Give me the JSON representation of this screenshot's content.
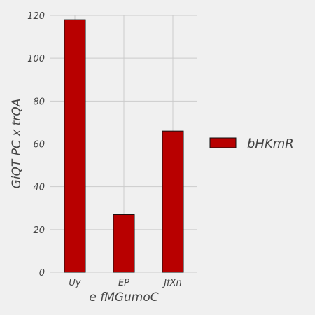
{
  "chart_data": {
    "type": "bar",
    "categories": [
      "Uy",
      "EP",
      "JfXn"
    ],
    "series": [
      {
        "name": "bHKmR",
        "values": [
          118,
          27,
          66
        ],
        "color": "#b80000"
      }
    ],
    "title": "",
    "xlabel": "e fMGumoC",
    "ylabel": "GiQT PC x trQA",
    "ylim": [
      0,
      120
    ],
    "yticks": [
      0,
      20,
      40,
      60,
      80,
      100,
      120
    ],
    "grid": true,
    "legend": "right"
  },
  "colors": {
    "background": "#f0f0f0",
    "grid": "#cbcbcb",
    "bar_edge": "#111111",
    "text": "#444444"
  }
}
